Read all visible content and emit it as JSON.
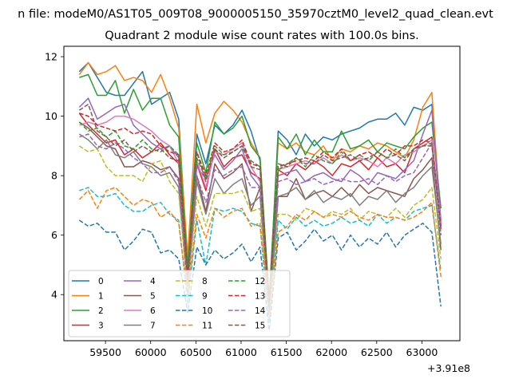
{
  "file_label": "n file: modeM0/AS1T05_009T08_9000005150_35970cztM0_level2_quad_clean.evt",
  "chart_data": {
    "type": "line",
    "title": "Quadrant 2 module wise count rates with 100.0s bins.",
    "xlabel": "",
    "ylabel": "",
    "x_offset_label": "+3.91e8",
    "xlim": [
      59040,
      63420
    ],
    "ylim": [
      2.45,
      12.35
    ],
    "x_ticks": [
      59500,
      60000,
      60500,
      61000,
      61500,
      62000,
      62500,
      63000
    ],
    "y_ticks": [
      4,
      6,
      8,
      10,
      12
    ],
    "grid": false,
    "legend_position": "lower-left",
    "legend_columns": 4,
    "x": [
      59210,
      59310,
      59410,
      59510,
      59610,
      59710,
      59810,
      59910,
      60010,
      60110,
      60210,
      60310,
      60410,
      60510,
      60610,
      60710,
      60810,
      60910,
      61010,
      61110,
      61210,
      61310,
      61410,
      61510,
      61610,
      61710,
      61810,
      61910,
      62010,
      62110,
      62210,
      62310,
      62410,
      62510,
      62610,
      62710,
      62810,
      62910,
      63010,
      63110,
      63210
    ],
    "series": [
      {
        "name": "0",
        "color": "#1f77b4",
        "dash": "solid",
        "values": [
          11.5,
          11.8,
          11.3,
          10.8,
          10.7,
          10.7,
          11.1,
          11.5,
          10.4,
          10.6,
          10.8,
          9.9,
          5.0,
          9.4,
          8.4,
          9.7,
          9.4,
          9.7,
          10.2,
          9.5,
          8.5,
          3.6,
          9.5,
          9.2,
          8.7,
          9.4,
          9.0,
          9.3,
          9.2,
          9.4,
          9.5,
          9.6,
          9.8,
          9.9,
          9.9,
          10.1,
          9.7,
          10.3,
          10.2,
          10.4,
          6.3
        ]
      },
      {
        "name": "1",
        "color": "#ff7f0e",
        "dash": "solid",
        "values": [
          11.4,
          11.8,
          11.4,
          11.5,
          11.7,
          11.2,
          11.3,
          11.2,
          10.8,
          11.4,
          10.6,
          9.6,
          5.3,
          10.4,
          9.1,
          10.1,
          10.5,
          10.2,
          9.8,
          9.1,
          8.6,
          3.9,
          9.1,
          8.9,
          9.1,
          8.8,
          8.7,
          9.0,
          8.5,
          8.9,
          8.8,
          9.0,
          8.9,
          9.1,
          9.0,
          8.8,
          8.6,
          9.2,
          10.3,
          10.8,
          6.4
        ]
      },
      {
        "name": "2",
        "color": "#2ca02c",
        "dash": "solid",
        "values": [
          11.3,
          11.4,
          10.7,
          10.7,
          11.2,
          10.1,
          10.9,
          10.2,
          10.6,
          10.6,
          9.7,
          9.3,
          4.9,
          9.1,
          8.1,
          9.8,
          9.4,
          9.6,
          10.0,
          9.0,
          8.6,
          3.8,
          9.3,
          8.9,
          9.4,
          8.7,
          9.2,
          8.8,
          8.8,
          9.5,
          8.9,
          9.0,
          9.2,
          8.8,
          9.1,
          9.0,
          8.9,
          9.3,
          9.6,
          9.8,
          6.9
        ]
      },
      {
        "name": "3",
        "color": "#d62728",
        "dash": "solid",
        "values": [
          10.1,
          9.7,
          9.4,
          9.1,
          9.2,
          8.7,
          8.9,
          8.6,
          8.8,
          9.1,
          8.7,
          8.4,
          4.5,
          8.4,
          7.5,
          8.9,
          8.3,
          8.6,
          8.7,
          8.1,
          7.9,
          3.5,
          8.2,
          8.0,
          8.4,
          8.2,
          8.5,
          8.3,
          8.0,
          8.4,
          8.3,
          8.5,
          8.2,
          8.6,
          8.3,
          8.4,
          8.1,
          8.9,
          9.1,
          9.3,
          6.2
        ]
      },
      {
        "name": "4",
        "color": "#9467bd",
        "dash": "solid",
        "values": [
          10.3,
          10.6,
          9.9,
          10.1,
          10.3,
          10.4,
          9.7,
          9.4,
          9.1,
          8.9,
          9.0,
          8.6,
          4.6,
          8.3,
          7.9,
          8.7,
          8.2,
          8.5,
          8.9,
          8.0,
          7.6,
          3.5,
          8.0,
          8.1,
          8.2,
          7.8,
          8.0,
          8.1,
          7.9,
          7.8,
          8.2,
          8.0,
          7.7,
          8.1,
          8.0,
          7.9,
          8.2,
          8.5,
          9.4,
          10.2,
          6.5
        ]
      },
      {
        "name": "5",
        "color": "#8c564b",
        "dash": "solid",
        "values": [
          9.8,
          9.6,
          9.3,
          9.0,
          8.9,
          8.3,
          8.3,
          8.5,
          8.4,
          8.2,
          8.3,
          7.9,
          4.3,
          8.0,
          6.8,
          8.4,
          7.9,
          8.1,
          8.4,
          6.8,
          7.6,
          3.4,
          7.3,
          7.3,
          7.9,
          7.2,
          7.4,
          7.5,
          7.3,
          7.6,
          7.3,
          7.7,
          7.4,
          7.6,
          7.5,
          7.4,
          7.3,
          7.9,
          8.2,
          8.6,
          5.5
        ]
      },
      {
        "name": "6",
        "color": "#e377c2",
        "dash": "solid",
        "values": [
          9.7,
          9.8,
          9.7,
          9.8,
          10.0,
          10.0,
          9.9,
          9.7,
          9.5,
          9.2,
          9.0,
          8.4,
          4.6,
          8.5,
          7.6,
          8.8,
          8.7,
          8.9,
          9.1,
          8.3,
          7.8,
          3.6,
          8.2,
          8.3,
          8.4,
          8.5,
          8.4,
          8.6,
          8.4,
          8.7,
          8.5,
          8.6,
          8.5,
          8.3,
          8.6,
          8.4,
          8.7,
          8.8,
          9.0,
          9.2,
          6.4
        ]
      },
      {
        "name": "7",
        "color": "#7f7f7f",
        "dash": "solid",
        "values": [
          9.4,
          9.2,
          8.9,
          9.2,
          8.7,
          8.6,
          8.8,
          8.4,
          8.3,
          8.0,
          8.1,
          7.6,
          4.0,
          7.8,
          6.7,
          7.9,
          7.4,
          7.7,
          7.9,
          7.0,
          7.3,
          3.3,
          7.3,
          7.4,
          7.6,
          7.2,
          7.5,
          7.1,
          7.3,
          7.2,
          7.4,
          7.0,
          7.3,
          7.2,
          7.5,
          7.1,
          7.4,
          7.6,
          8.0,
          8.3,
          5.7
        ]
      },
      {
        "name": "8",
        "color": "#bcbd22",
        "dash": "dashed",
        "values": [
          9.0,
          8.8,
          8.9,
          8.3,
          8.0,
          8.0,
          8.0,
          7.8,
          8.4,
          8.5,
          7.8,
          7.4,
          4.2,
          7.3,
          6.3,
          7.4,
          7.4,
          7.4,
          7.5,
          6.8,
          6.9,
          3.3,
          6.7,
          6.7,
          6.5,
          6.9,
          6.8,
          6.6,
          6.8,
          6.7,
          6.9,
          6.5,
          6.8,
          6.7,
          6.6,
          6.9,
          6.6,
          7.0,
          7.2,
          7.6,
          5.2
        ]
      },
      {
        "name": "9",
        "color": "#17becf",
        "dash": "dashed",
        "values": [
          7.5,
          7.6,
          7.3,
          7.3,
          7.4,
          7.0,
          6.8,
          6.8,
          7.0,
          7.1,
          6.7,
          6.5,
          3.7,
          6.5,
          5.0,
          6.9,
          6.8,
          6.9,
          6.8,
          6.4,
          6.3,
          3.1,
          6.5,
          6.2,
          6.6,
          6.3,
          6.5,
          6.3,
          6.4,
          6.6,
          6.4,
          6.5,
          6.3,
          6.7,
          6.4,
          6.6,
          6.5,
          6.8,
          6.9,
          7.0,
          4.8
        ]
      },
      {
        "name": "10",
        "color": "#1f77b4",
        "dash": "dashed",
        "values": [
          6.5,
          6.3,
          6.4,
          6.1,
          6.1,
          5.5,
          5.8,
          6.2,
          6.1,
          5.4,
          5.5,
          5.2,
          3.4,
          5.6,
          5.0,
          5.5,
          5.2,
          5.4,
          5.7,
          5.1,
          5.6,
          2.8,
          5.9,
          6.1,
          5.5,
          5.8,
          6.2,
          5.8,
          6.0,
          5.5,
          6.0,
          5.6,
          5.9,
          5.7,
          6.1,
          5.6,
          6.0,
          6.2,
          6.4,
          6.1,
          3.6
        ]
      },
      {
        "name": "11",
        "color": "#ff7f0e",
        "dash": "dashed",
        "values": [
          7.2,
          7.5,
          6.9,
          7.5,
          7.6,
          7.3,
          7.0,
          7.2,
          7.1,
          6.6,
          6.8,
          6.4,
          3.9,
          6.7,
          5.9,
          6.9,
          6.6,
          6.8,
          6.9,
          6.3,
          6.4,
          3.2,
          6.1,
          6.3,
          6.7,
          6.5,
          6.8,
          6.6,
          6.7,
          6.6,
          6.8,
          6.6,
          6.5,
          6.7,
          6.6,
          6.6,
          6.5,
          6.6,
          6.8,
          7.1,
          4.6
        ]
      },
      {
        "name": "12",
        "color": "#2ca02c",
        "dash": "dashed",
        "values": [
          9.8,
          9.5,
          9.6,
          9.3,
          9.5,
          9.0,
          8.9,
          9.2,
          8.9,
          8.8,
          9.0,
          8.7,
          4.7,
          8.6,
          7.9,
          9.0,
          8.7,
          8.8,
          9.0,
          8.5,
          8.3,
          3.7,
          8.2,
          8.4,
          8.6,
          8.3,
          8.7,
          8.5,
          8.4,
          8.8,
          8.5,
          8.7,
          8.5,
          8.8,
          8.6,
          8.9,
          8.6,
          8.9,
          9.0,
          9.1,
          6.0
        ]
      },
      {
        "name": "13",
        "color": "#d62728",
        "dash": "dashed",
        "values": [
          10.1,
          10.0,
          9.7,
          9.6,
          9.5,
          9.6,
          9.4,
          9.5,
          9.4,
          9.0,
          8.8,
          8.7,
          4.6,
          8.8,
          8.0,
          9.1,
          8.8,
          8.9,
          9.2,
          8.4,
          8.3,
          3.7,
          8.3,
          8.4,
          8.5,
          8.6,
          8.5,
          8.8,
          8.6,
          8.9,
          8.5,
          8.7,
          8.8,
          8.6,
          8.9,
          8.7,
          9.0,
          9.0,
          9.2,
          9.1,
          6.3
        ]
      },
      {
        "name": "14",
        "color": "#9467bd",
        "dash": "dashed",
        "values": [
          9.3,
          9.4,
          9.0,
          8.9,
          9.1,
          8.9,
          8.6,
          8.4,
          8.1,
          8.1,
          8.3,
          7.8,
          4.3,
          8.0,
          7.1,
          8.2,
          8.0,
          8.2,
          8.3,
          7.6,
          7.6,
          3.4,
          7.8,
          7.9,
          7.7,
          7.8,
          7.9,
          7.7,
          7.8,
          7.9,
          7.8,
          7.8,
          7.9,
          7.7,
          8.0,
          7.8,
          8.0,
          8.1,
          8.6,
          9.1,
          6.0
        ]
      },
      {
        "name": "15",
        "color": "#8c564b",
        "dash": "dashed",
        "values": [
          10.2,
          10.4,
          9.5,
          9.3,
          9.0,
          9.2,
          8.8,
          9.0,
          8.8,
          8.9,
          8.6,
          8.5,
          4.5,
          8.8,
          7.8,
          8.9,
          8.6,
          8.8,
          9.0,
          8.3,
          8.2,
          3.6,
          8.4,
          8.3,
          8.6,
          8.4,
          8.4,
          8.7,
          8.5,
          8.6,
          8.7,
          8.5,
          8.6,
          8.8,
          8.6,
          8.7,
          8.5,
          8.9,
          9.0,
          9.0,
          6.2
        ]
      }
    ]
  }
}
